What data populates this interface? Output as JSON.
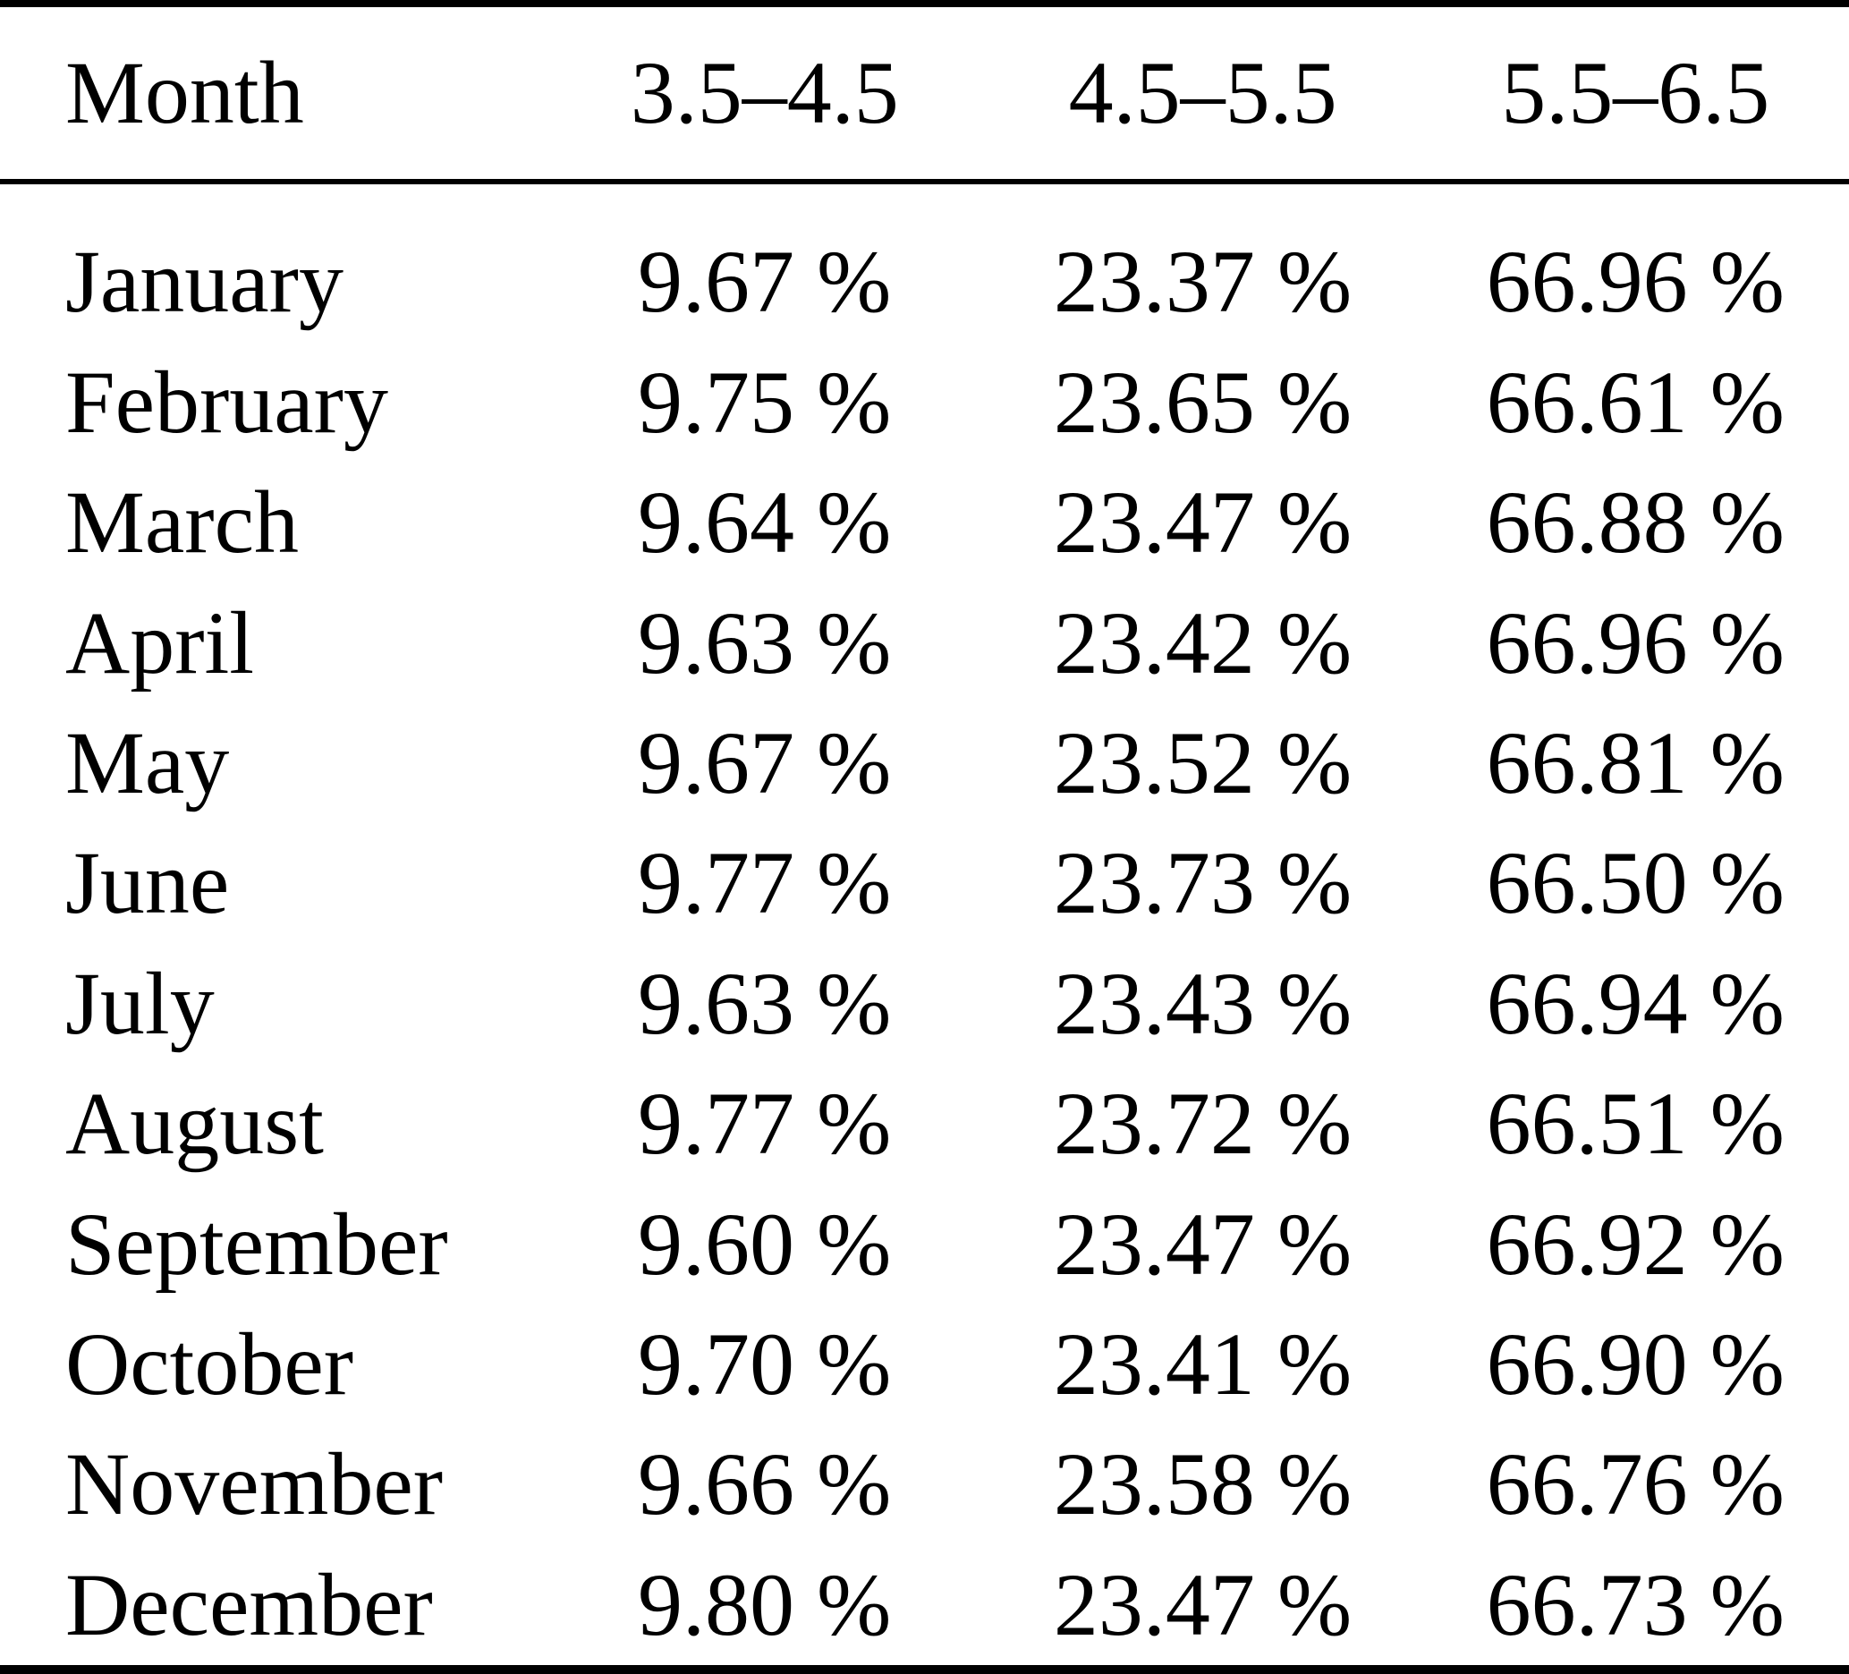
{
  "table": {
    "columns": [
      "Month",
      "3.5–4.5",
      "4.5–5.5",
      "5.5–6.5"
    ],
    "rows": [
      {
        "month": "January",
        "values": [
          "9.67 %",
          "23.37 %",
          "66.96 %"
        ]
      },
      {
        "month": "February",
        "values": [
          "9.75 %",
          "23.65 %",
          "66.61 %"
        ]
      },
      {
        "month": "March",
        "values": [
          "9.64 %",
          "23.47 %",
          "66.88 %"
        ]
      },
      {
        "month": "April",
        "values": [
          "9.63 %",
          "23.42 %",
          "66.96 %"
        ]
      },
      {
        "month": "May",
        "values": [
          "9.67 %",
          "23.52 %",
          "66.81 %"
        ]
      },
      {
        "month": "June",
        "values": [
          "9.77 %",
          "23.73 %",
          "66.50 %"
        ]
      },
      {
        "month": "July",
        "values": [
          "9.63 %",
          "23.43 %",
          "66.94 %"
        ]
      },
      {
        "month": "August",
        "values": [
          "9.77 %",
          "23.72 %",
          "66.51 %"
        ]
      },
      {
        "month": "September",
        "values": [
          "9.60 %",
          "23.47 %",
          "66.92 %"
        ]
      },
      {
        "month": "October",
        "values": [
          "9.70 %",
          "23.41 %",
          "66.90 %"
        ]
      },
      {
        "month": "November",
        "values": [
          "9.66 %",
          "23.58 %",
          "66.76 %"
        ]
      },
      {
        "month": "December",
        "values": [
          "9.80 %",
          "23.47 %",
          "66.73 %"
        ]
      }
    ],
    "colors": {
      "text": "#000000",
      "background": "#ffffff",
      "rule": "#000000"
    }
  }
}
